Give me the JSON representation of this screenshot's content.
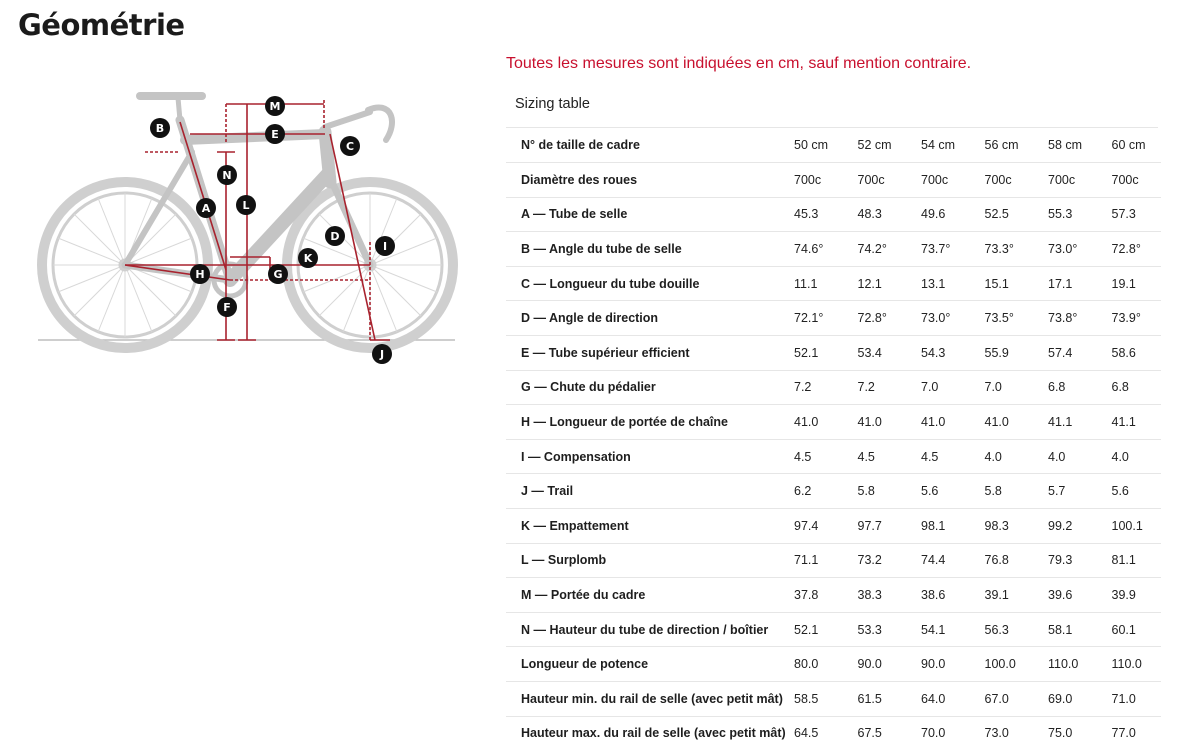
{
  "page": {
    "title": "Géométrie",
    "notice": "Toutes les mesures sont indiquées en cm, sauf mention contraire.",
    "table_caption": "Sizing table"
  },
  "diagram": {
    "labels": [
      "A",
      "B",
      "C",
      "D",
      "E",
      "F",
      "G",
      "H",
      "I",
      "J",
      "K",
      "L",
      "M",
      "N"
    ],
    "accent_color": "#a8222e",
    "bike_color": "#c9c9c9"
  },
  "table": {
    "header_label": "N° de taille de cadre",
    "sizes": [
      "50 cm",
      "52 cm",
      "54 cm",
      "56 cm",
      "58 cm",
      "60 cm"
    ],
    "rows": [
      {
        "label": "Diamètre des roues",
        "values": [
          "700c",
          "700c",
          "700c",
          "700c",
          "700c",
          "700c"
        ]
      },
      {
        "label": "A — Tube de selle",
        "values": [
          "45.3",
          "48.3",
          "49.6",
          "52.5",
          "55.3",
          "57.3"
        ]
      },
      {
        "label": "B — Angle du tube de selle",
        "values": [
          "74.6°",
          "74.2°",
          "73.7°",
          "73.3°",
          "73.0°",
          "72.8°"
        ]
      },
      {
        "label": "C — Longueur du tube douille",
        "values": [
          "11.1",
          "12.1",
          "13.1",
          "15.1",
          "17.1",
          "19.1"
        ]
      },
      {
        "label": "D — Angle de direction",
        "values": [
          "72.1°",
          "72.8°",
          "73.0°",
          "73.5°",
          "73.8°",
          "73.9°"
        ]
      },
      {
        "label": "E — Tube supérieur efficient",
        "values": [
          "52.1",
          "53.4",
          "54.3",
          "55.9",
          "57.4",
          "58.6"
        ]
      },
      {
        "label": "G — Chute du pédalier",
        "values": [
          "7.2",
          "7.2",
          "7.0",
          "7.0",
          "6.8",
          "6.8"
        ]
      },
      {
        "label": "H — Longueur de portée de chaîne",
        "values": [
          "41.0",
          "41.0",
          "41.0",
          "41.0",
          "41.1",
          "41.1"
        ]
      },
      {
        "label": "I — Compensation",
        "values": [
          "4.5",
          "4.5",
          "4.5",
          "4.0",
          "4.0",
          "4.0"
        ]
      },
      {
        "label": "J — Trail",
        "values": [
          "6.2",
          "5.8",
          "5.6",
          "5.8",
          "5.7",
          "5.6"
        ]
      },
      {
        "label": "K — Empattement",
        "values": [
          "97.4",
          "97.7",
          "98.1",
          "98.3",
          "99.2",
          "100.1"
        ]
      },
      {
        "label": "L — Surplomb",
        "values": [
          "71.1",
          "73.2",
          "74.4",
          "76.8",
          "79.3",
          "81.1"
        ]
      },
      {
        "label": "M — Portée du cadre",
        "values": [
          "37.8",
          "38.3",
          "38.6",
          "39.1",
          "39.6",
          "39.9"
        ]
      },
      {
        "label": "N — Hauteur du tube de direction / boîtier",
        "values": [
          "52.1",
          "53.3",
          "54.1",
          "56.3",
          "58.1",
          "60.1"
        ]
      },
      {
        "label": "Longueur de potence",
        "values": [
          "80.0",
          "90.0",
          "90.0",
          "100.0",
          "110.0",
          "110.0"
        ]
      },
      {
        "label": "Hauteur min. du rail de selle (avec petit mât)",
        "values": [
          "58.5",
          "61.5",
          "64.0",
          "67.0",
          "69.0",
          "71.0"
        ]
      },
      {
        "label": "Hauteur max. du rail de selle (avec petit mât)",
        "values": [
          "64.5",
          "67.5",
          "70.0",
          "73.0",
          "75.0",
          "77.0"
        ]
      }
    ]
  }
}
